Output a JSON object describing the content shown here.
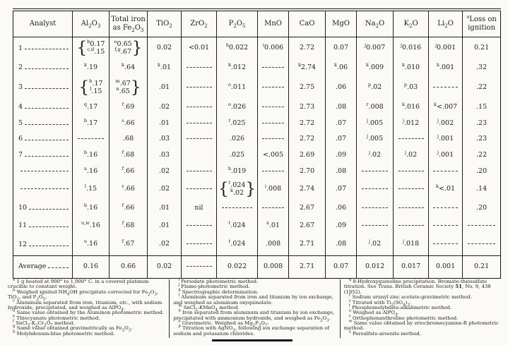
{
  "table": {
    "columns": [
      "Analyst",
      "Al~2~O~3~",
      "Total iron as Fe~2~O~3~",
      "TiO~2~",
      "ZrO~2~",
      "P~2~O~5~",
      "MnO",
      "CaO",
      "MgO",
      "Na~2~O",
      "K~2~O",
      "Li~2~O",
      "^a^Loss on ignition"
    ],
    "rows": [
      {
        "analyst": "1",
        "cells": [
          {
            "brace": "left",
            "lines": [
              "^b^0.17",
              "^c,d^.15"
            ]
          },
          {
            "brace": "right",
            "lines": [
              "^e^0.65",
              "^f,g^.67"
            ]
          },
          "0.02",
          "<0.01",
          "^h^0.022",
          "^i^0.006",
          "2.72",
          "0.07",
          "^j^0.007",
          "^j^0.016",
          "^j^0.001",
          "0.21"
        ]
      },
      {
        "analyst": "2",
        "cells": [
          "^k^.19",
          "^k^.64",
          "^k^.01",
          "............",
          "^k^.012",
          "............",
          "^k^2.74",
          "^k^.06",
          "^k^.009",
          "^k^.010",
          "^k^.001",
          ".32"
        ]
      },
      {
        "analyst": "3",
        "cells": [
          {
            "brace": "left",
            "lines": [
              "^b^.17",
              "^l^.15"
            ]
          },
          {
            "brace": "right",
            "lines": [
              "^m^.67",
              "^n^.65"
            ]
          },
          ".01",
          "............",
          "^o^.011",
          "............",
          "2.75",
          ".06",
          "^p^.02",
          "^p^.03",
          "............",
          ".22"
        ]
      },
      {
        "analyst": "4",
        "cells": [
          "^q^.17",
          "^f^.69",
          ".02",
          "............",
          "^o^.026",
          "............",
          "2.73",
          ".08",
          "^r^.008",
          "^k^.016",
          "^k^<.007",
          ".15"
        ]
      },
      {
        "analyst": "5",
        "cells": [
          "^b^.17",
          "^s^.66",
          ".01",
          "............",
          "^t^.025",
          "............",
          "2.72",
          ".07",
          "^j^.005",
          "^j^.012",
          "^j^.002",
          ".23"
        ]
      },
      {
        "analyst": "6",
        "cells": [
          "............",
          ".68",
          ".03",
          "............",
          ".026",
          "............",
          "2.72",
          ".07",
          "^j^.005",
          "............",
          "^j^.001",
          ".23"
        ]
      },
      {
        "analyst": "7",
        "cells": [
          "^b^.16",
          "^f^.68",
          ".03",
          "",
          ".025",
          "<.005",
          "2.69",
          ".09",
          "^j^.02",
          "^j^.02",
          "^j^.001",
          ".22"
        ]
      },
      {
        "analyst": "",
        "cells": [
          "^u^.16",
          "^f^.66",
          ".02",
          "............",
          "^h^.019",
          "............",
          "2.70",
          ".08",
          "............",
          "............",
          "............",
          ".20"
        ]
      },
      {
        "analyst": "",
        "cells": [
          "^l^.15",
          "^v^.66",
          ".02",
          "............",
          {
            "brace": "both",
            "lines": [
              "^t^.024",
              "^k^.02"
            ]
          },
          "^i^.008",
          "2.74",
          ".07",
          "............",
          "............",
          "^k^<.01",
          ".14"
        ]
      },
      {
        "analyst": "10",
        "cells": [
          "^b^.16",
          "^f^.66",
          ".01",
          "nil",
          "............",
          "............",
          "2.67",
          ".06",
          "............",
          "............",
          "............",
          ".20"
        ]
      },
      {
        "analyst": "11",
        "cells": [
          "^u,w^.16",
          "^f^.68",
          ".01",
          "............",
          "^t^.024",
          "^x^.01",
          "2.67",
          ".09",
          "............",
          "............",
          "............",
          "............"
        ]
      },
      {
        "analyst": "12",
        "cells": [
          "^u^.16",
          "^f^.67",
          ".02",
          "............",
          "^t^.024",
          ".008",
          "2.71",
          ".08",
          "^j^.02",
          "^j^.018",
          "............",
          "............"
        ]
      }
    ],
    "average": {
      "label": "Average",
      "cells": [
        "0.16",
        "0.66",
        "0.02",
        "............",
        "0.022",
        "0.008",
        "2.71",
        "0.07",
        "0.012",
        "0.017",
        "0.001",
        "0.21"
      ]
    }
  },
  "footnotes": {
    "col1": [
      "^a^ 1 g heated at 900° to 1,000° C. in a covered platinum crucible to constant weight.",
      "^b^ Weighed ignited NH~4~OH precipitate corrected for Fe~2~O~3~, TiO~2~, and P~2~O~5~.",
      "^c^ Aluminum separated from iron, titanium, etc., with sodium hydroxide, precipitated, and weighed as AlPO~4~.",
      "^d^ Same value obtained by the Aluminon photometric method.",
      "^e^ Thiocyanate photometric method.",
      "^f^ SnCl~2~-K~2~Cr~2~O~7~ method.",
      "^g^ Same value obtained gravimetrically as Fe~2~O~3~.",
      "^h^ Molybdenum-blue photometric method."
    ],
    "col2": [
      "^i^ Periodate photometric method.",
      "^j^ Flame-photometric method.",
      "^k^ Spectrographic determination.",
      "^l^ Aluminum separated from iron and titanium by ion exchange, and weighed as aluminum oxyquinolate.",
      "^m^ SnCl~2~-KMnO~4~ method.",
      "^n^ Iron separated from aluminum and titanium by ion exchange, precipitated with ammonium hydroxide, and weighed as Fe~2~O~3~.",
      "^o^ Gravimetric.  Weighed as Mg~2~P~2~O~7~.",
      "^p^ Titration with AgNO~3~, following ion exchange separation of sodium and potassium chlorides."
    ],
    "col3": [
      "^q^ 8-Hydroxyquinoline precipitation.  Bromate-thiosulfate titration.  See Trans. British Ceramic Society *51*, No. 9, 438 (1952).",
      "^r^ Sodium uranyl zinc acetate-gravimetric method.",
      "^s^ Titrated with Ti~2~(SO~4~)~3~.",
      "^t^ Phosphomolybdate-alkalimetric method.",
      "^u^ Weighed as AlPO~4~.",
      "^v^ Orthophenanthroline photometric method.",
      "^w^ Same value obtained by eriochromecyanine-R photometric method.",
      "^x^ Persulfate-arsenite method."
    ]
  }
}
